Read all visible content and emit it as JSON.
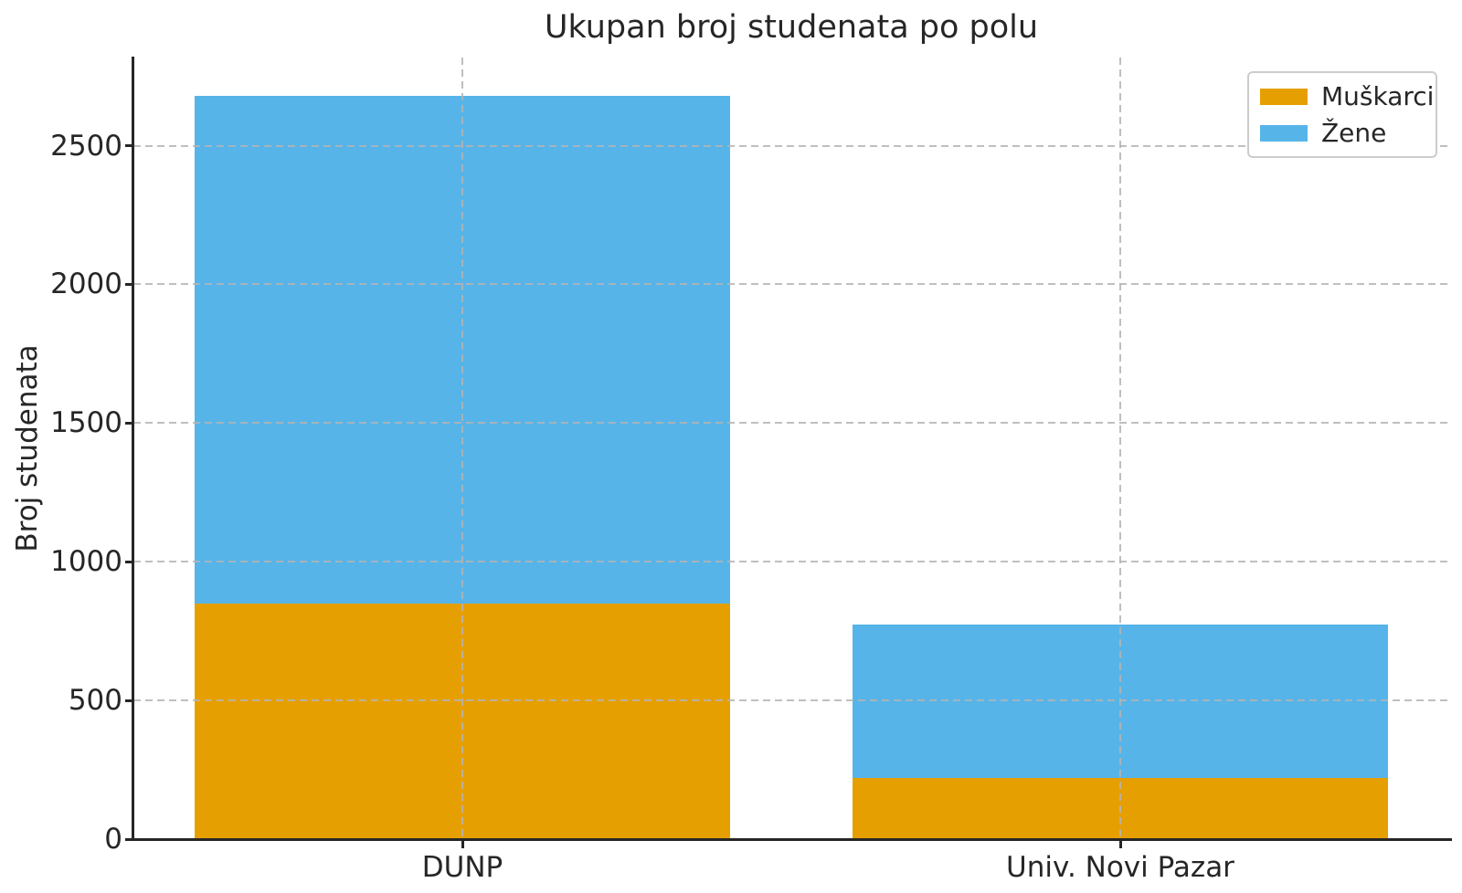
{
  "figure": {
    "background": "#ffffff"
  },
  "chart_data": {
    "type": "bar",
    "stacked": true,
    "title": "Ukupan broj studenata po polu",
    "xlabel": "",
    "ylabel": "Broj studenata",
    "categories": [
      "DUNP",
      "Univ. Novi Pazar"
    ],
    "series": [
      {
        "name": "Muškarci",
        "color": "#E69F00",
        "values": [
          850,
          220
        ]
      },
      {
        "name": "Žene",
        "color": "#56B4E9",
        "values": [
          1830,
          555
        ]
      }
    ],
    "stack_totals": [
      2680,
      775
    ],
    "ylim": [
      0,
      2818
    ],
    "yticks": [
      0,
      500,
      1000,
      1500,
      2000,
      2500
    ],
    "grid": {
      "style": "dashed",
      "color": "#c8c8c8",
      "drawn_above_bars": true
    },
    "legend": {
      "position": "upper right",
      "entries": [
        "Muškarci",
        "Žene"
      ]
    },
    "axis_color": "#262626",
    "text_color": "#262626"
  }
}
